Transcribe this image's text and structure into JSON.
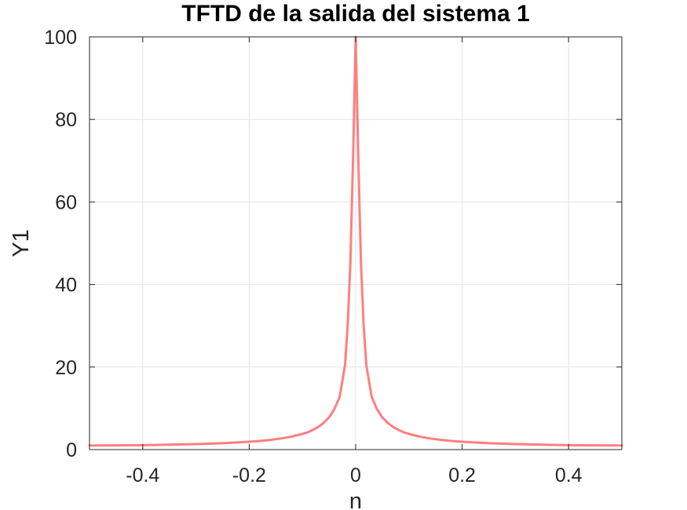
{
  "chart_data": {
    "type": "line",
    "title": "TFTD de la salida del sistema 1",
    "xlabel": "n",
    "ylabel": "Y1",
    "xlim": [
      -0.5,
      0.5
    ],
    "ylim": [
      0,
      100
    ],
    "xticks": [
      -0.4,
      -0.2,
      0,
      0.2,
      0.4
    ],
    "xtick_labels": [
      "-0.4",
      "-0.2",
      "0",
      "0.2",
      "0.4"
    ],
    "yticks": [
      0,
      20,
      40,
      60,
      80,
      100
    ],
    "ytick_labels": [
      "0",
      "20",
      "40",
      "60",
      "80",
      "100"
    ],
    "grid": true,
    "series": [
      {
        "color": "#ff7f7f",
        "x": [
          -0.5,
          -0.45,
          -0.4,
          -0.35,
          -0.3,
          -0.25,
          -0.2,
          -0.18,
          -0.16,
          -0.14,
          -0.12,
          -0.1,
          -0.09,
          -0.08,
          -0.07,
          -0.06,
          -0.05,
          -0.04,
          -0.03,
          -0.02,
          -0.015,
          -0.01,
          -0.005,
          0,
          0.005,
          0.01,
          0.015,
          0.02,
          0.03,
          0.04,
          0.05,
          0.06,
          0.07,
          0.08,
          0.09,
          0.1,
          0.12,
          0.14,
          0.16,
          0.18,
          0.2,
          0.25,
          0.3,
          0.35,
          0.4,
          0.45,
          0.5
        ],
        "y": [
          1.0,
          1.02,
          1.08,
          1.18,
          1.33,
          1.55,
          1.9,
          2.1,
          2.35,
          2.7,
          3.15,
          3.8,
          4.2,
          4.8,
          5.5,
          6.5,
          7.8,
          9.8,
          12.8,
          20.5,
          30.0,
          45.0,
          70.0,
          100.0,
          70.0,
          45.0,
          30.0,
          20.5,
          12.8,
          9.8,
          7.8,
          6.5,
          5.5,
          4.8,
          4.2,
          3.8,
          3.15,
          2.7,
          2.35,
          2.1,
          1.9,
          1.55,
          1.33,
          1.18,
          1.08,
          1.02,
          1.0
        ]
      }
    ]
  }
}
